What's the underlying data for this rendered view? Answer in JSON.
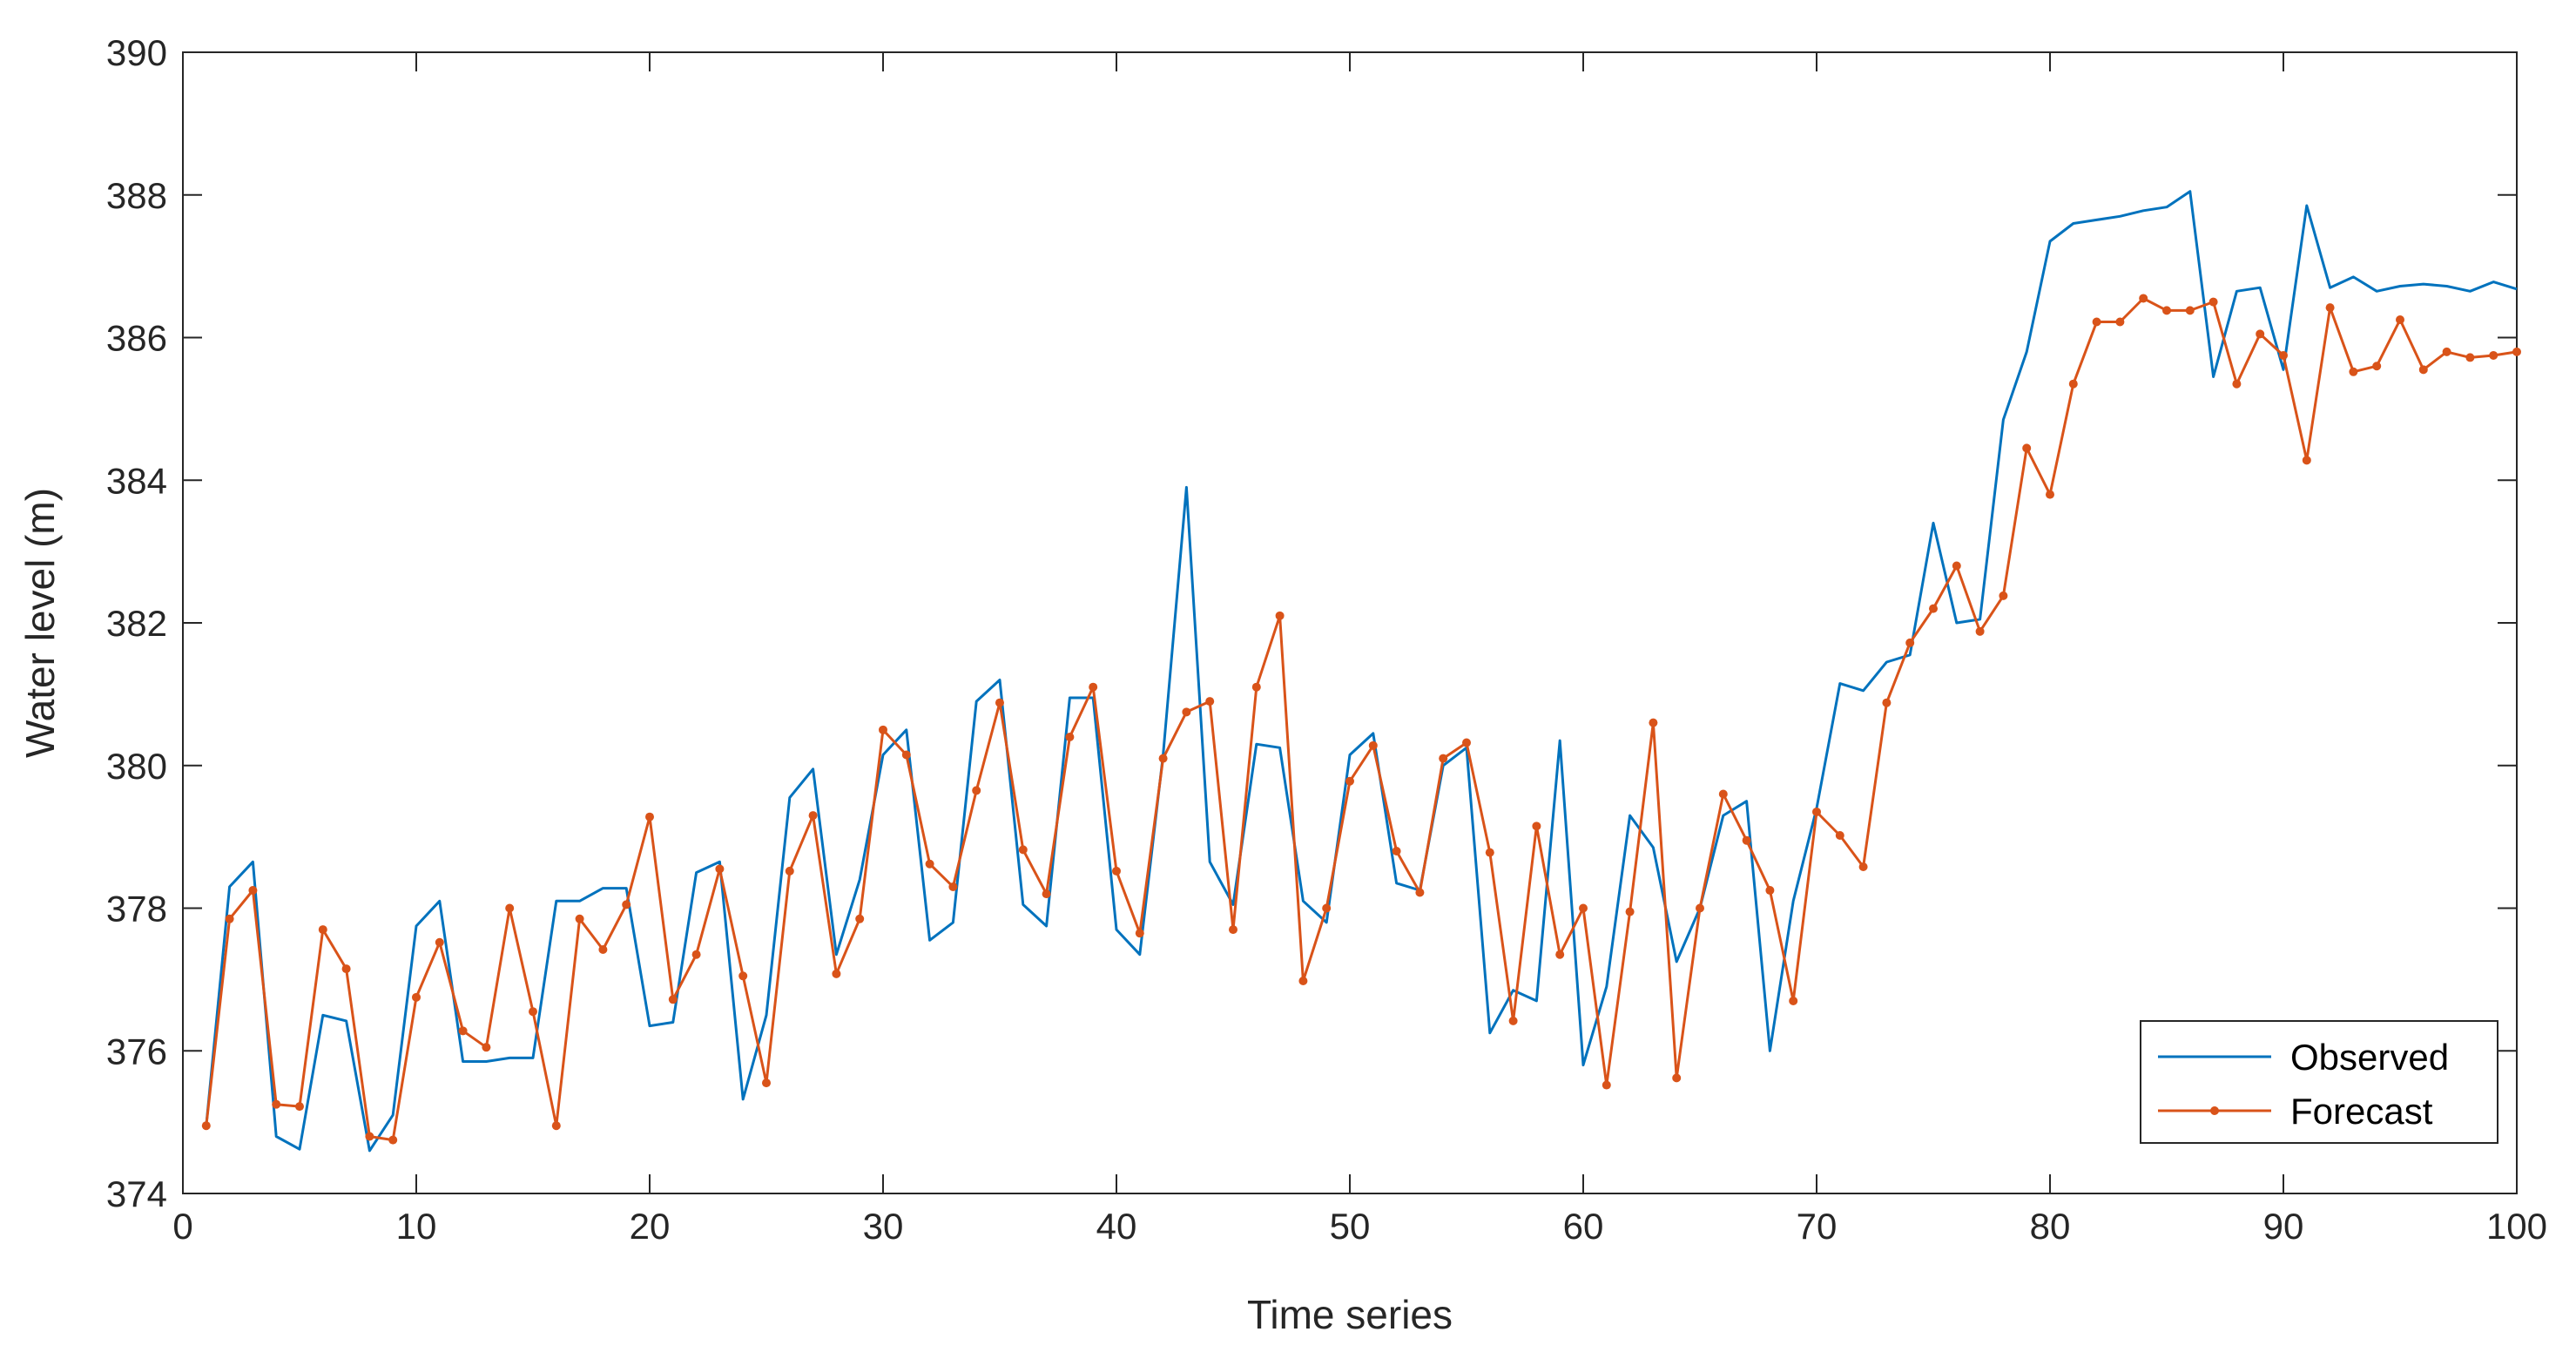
{
  "chart_data": {
    "type": "line",
    "title": "",
    "xlabel": "Time series",
    "ylabel": "Water level (m)",
    "xlim": [
      0,
      100
    ],
    "ylim": [
      374,
      390
    ],
    "xticks": [
      0,
      10,
      20,
      30,
      40,
      50,
      60,
      70,
      80,
      90,
      100
    ],
    "yticks": [
      374,
      376,
      378,
      380,
      382,
      384,
      386,
      388,
      390
    ],
    "grid": false,
    "legend_position": "bottom-right",
    "x": [
      1,
      2,
      3,
      4,
      5,
      6,
      7,
      8,
      9,
      10,
      11,
      12,
      13,
      14,
      15,
      16,
      17,
      18,
      19,
      20,
      21,
      22,
      23,
      24,
      25,
      26,
      27,
      28,
      29,
      30,
      31,
      32,
      33,
      34,
      35,
      36,
      37,
      38,
      39,
      40,
      41,
      42,
      43,
      44,
      45,
      46,
      47,
      48,
      49,
      50,
      51,
      52,
      53,
      54,
      55,
      56,
      57,
      58,
      59,
      60,
      61,
      62,
      63,
      64,
      65,
      66,
      67,
      68,
      69,
      70,
      71,
      72,
      73,
      74,
      75,
      76,
      77,
      78,
      79,
      80,
      81,
      82,
      83,
      84,
      85,
      86,
      87,
      88,
      89,
      90,
      91,
      92,
      93,
      94,
      95,
      96,
      97,
      98,
      99,
      100
    ],
    "series": [
      {
        "name": "Observed",
        "color": "#0072BD",
        "marker": "none",
        "values": [
          374.95,
          378.3,
          378.65,
          374.8,
          374.62,
          376.5,
          376.42,
          374.6,
          375.1,
          377.75,
          378.1,
          375.85,
          375.85,
          375.9,
          375.9,
          378.1,
          378.1,
          378.28,
          378.28,
          376.35,
          376.4,
          378.5,
          378.65,
          375.32,
          376.5,
          379.55,
          379.95,
          377.35,
          378.4,
          380.15,
          380.5,
          377.55,
          377.8,
          380.9,
          381.2,
          378.05,
          377.75,
          380.95,
          380.95,
          377.7,
          377.35,
          380.15,
          383.9,
          378.65,
          378.05,
          380.3,
          380.25,
          378.1,
          377.8,
          380.15,
          380.45,
          378.35,
          378.25,
          380.0,
          380.25,
          376.25,
          376.85,
          376.7,
          380.35,
          375.8,
          376.9,
          379.3,
          378.85,
          377.25,
          378.0,
          379.3,
          379.5,
          376.0,
          378.1,
          379.4,
          381.15,
          381.05,
          381.45,
          381.55,
          383.4,
          382.0,
          382.05,
          384.85,
          385.8,
          387.35,
          387.6,
          387.65,
          387.7,
          387.78,
          387.83,
          388.05,
          385.45,
          386.65,
          386.7,
          385.55,
          387.85,
          386.7,
          386.85,
          386.65,
          386.72,
          386.75,
          386.72,
          386.65,
          386.78,
          386.68
        ]
      },
      {
        "name": "Forecast",
        "color": "#D95319",
        "marker": "dot",
        "values": [
          374.95,
          377.85,
          378.25,
          375.25,
          375.22,
          377.7,
          377.15,
          374.8,
          374.75,
          376.75,
          377.52,
          376.28,
          376.05,
          378.0,
          376.55,
          374.95,
          377.85,
          377.42,
          378.05,
          379.28,
          376.72,
          377.35,
          378.55,
          377.05,
          375.55,
          378.52,
          379.3,
          377.08,
          377.85,
          380.5,
          380.15,
          378.62,
          378.3,
          379.65,
          380.88,
          378.82,
          378.2,
          380.4,
          381.1,
          378.52,
          377.65,
          380.1,
          380.75,
          380.9,
          377.7,
          381.1,
          382.1,
          376.98,
          378.0,
          379.78,
          380.28,
          378.8,
          378.22,
          380.1,
          380.32,
          378.78,
          376.42,
          379.15,
          377.35,
          378.0,
          375.52,
          377.95,
          380.6,
          375.62,
          378.0,
          379.6,
          378.95,
          378.25,
          376.7,
          379.35,
          379.02,
          378.58,
          380.88,
          381.72,
          382.2,
          382.8,
          381.88,
          382.38,
          384.45,
          383.8,
          385.35,
          386.22,
          386.22,
          386.55,
          386.38,
          386.38,
          386.5,
          385.35,
          386.05,
          385.75,
          384.28,
          386.42,
          385.52,
          385.6,
          386.25,
          385.55,
          385.8,
          385.72,
          385.75,
          385.8
        ]
      }
    ]
  }
}
